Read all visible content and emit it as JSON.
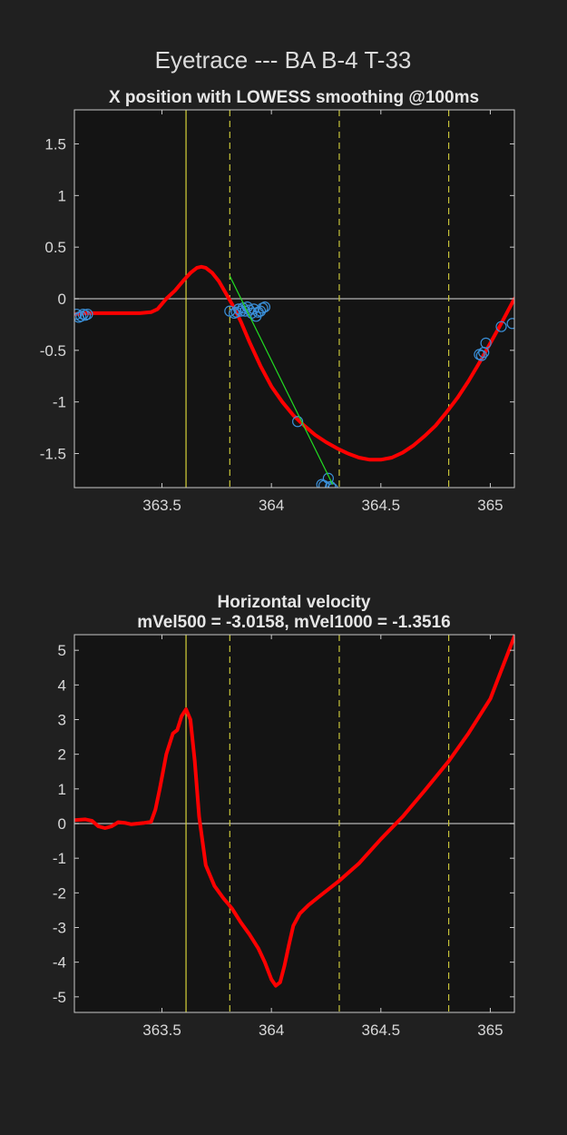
{
  "figure": {
    "title": "Eyetrace --- BA B-4 T-33",
    "background": "#202020",
    "axes_background": "#141414"
  },
  "colors": {
    "trace": "#ff0000",
    "samples": "#3a8fd8",
    "fit_line": "#22dd22",
    "zero_line": "#9a9a9a",
    "solid_marker": "#d6d23a",
    "dashed_marker": "#c8c43a"
  },
  "chart_data": [
    {
      "type": "line",
      "title": "X position with LOWESS smoothing @100ms",
      "xlabel": "",
      "ylabel": "",
      "xlim": [
        363.1,
        365.11
      ],
      "ylim": [
        -1.83,
        1.83
      ],
      "xticks": [
        363.5,
        364,
        364.5,
        365
      ],
      "xtick_labels": [
        "363.5",
        "364",
        "364.5",
        "365"
      ],
      "yticks": [
        1.5,
        1,
        0.5,
        0,
        -0.5,
        -1,
        -1.5
      ],
      "ytick_labels": [
        "1.5",
        "1",
        "0.5",
        "0",
        "-0.5",
        "-1",
        "-1.5"
      ],
      "grid": false,
      "zero_line": 0,
      "vlines_solid": [
        363.61
      ],
      "vlines_dashed": [
        363.81,
        364.31,
        364.81
      ],
      "series": [
        {
          "kind": "smoothed",
          "x": [
            363.1,
            363.15,
            363.2,
            363.25,
            363.3,
            363.35,
            363.4,
            363.45,
            363.48,
            363.52,
            363.56,
            363.6,
            363.63,
            363.66,
            363.68,
            363.7,
            363.73,
            363.76,
            363.79,
            363.82,
            363.86,
            363.9,
            363.95,
            364.0,
            364.05,
            364.1,
            364.15,
            364.2,
            364.25,
            364.3,
            364.35,
            364.4,
            364.45,
            364.5,
            364.55,
            364.6,
            364.65,
            364.7,
            364.75,
            364.8,
            364.85,
            364.9,
            364.95,
            365.0,
            365.05,
            365.11
          ],
          "y": [
            -0.15,
            -0.14,
            -0.14,
            -0.14,
            -0.14,
            -0.14,
            -0.14,
            -0.13,
            -0.1,
            0.0,
            0.08,
            0.18,
            0.25,
            0.3,
            0.31,
            0.3,
            0.25,
            0.17,
            0.06,
            -0.05,
            -0.22,
            -0.42,
            -0.65,
            -0.85,
            -1.0,
            -1.13,
            -1.23,
            -1.32,
            -1.39,
            -1.45,
            -1.5,
            -1.54,
            -1.56,
            -1.56,
            -1.54,
            -1.49,
            -1.42,
            -1.33,
            -1.23,
            -1.1,
            -0.96,
            -0.8,
            -0.62,
            -0.43,
            -0.24,
            0.0
          ]
        },
        {
          "kind": "samples",
          "x": [
            363.11,
            363.12,
            363.13,
            363.14,
            363.15,
            363.16,
            363.81,
            363.83,
            363.84,
            363.85,
            363.86,
            363.87,
            363.88,
            363.89,
            363.9,
            363.91,
            363.92,
            363.93,
            363.94,
            363.95,
            363.96,
            363.97,
            364.12,
            364.23,
            364.24,
            364.26,
            364.27,
            364.28,
            364.95,
            364.96,
            364.97,
            364.98,
            365.05,
            365.1
          ],
          "y": [
            -0.15,
            -0.18,
            -0.17,
            -0.15,
            -0.16,
            -0.15,
            -0.12,
            -0.14,
            -0.13,
            -0.1,
            -0.12,
            -0.09,
            -0.12,
            -0.08,
            -0.11,
            -0.14,
            -0.1,
            -0.17,
            -0.13,
            -0.12,
            -0.09,
            -0.08,
            -1.19,
            -1.8,
            -1.81,
            -1.74,
            -1.82,
            -1.84,
            -0.54,
            -0.55,
            -0.52,
            -0.43,
            -0.27,
            -0.24
          ]
        },
        {
          "kind": "fit",
          "x": [
            363.81,
            364.28
          ],
          "y": [
            0.22,
            -1.8
          ]
        }
      ]
    },
    {
      "type": "line",
      "title": "Horizontal velocity",
      "subtitle": "mVel500 = -3.0158, mVel1000 = -1.3516",
      "xlabel": "",
      "ylabel": "",
      "xlim": [
        363.1,
        365.11
      ],
      "ylim": [
        -5.45,
        5.45
      ],
      "xticks": [
        363.5,
        364,
        364.5,
        365
      ],
      "xtick_labels": [
        "363.5",
        "364",
        "364.5",
        "365"
      ],
      "yticks": [
        5,
        4,
        3,
        2,
        1,
        0,
        -1,
        -2,
        -3,
        -4,
        -5
      ],
      "ytick_labels": [
        "5",
        "4",
        "3",
        "2",
        "1",
        "0",
        "-1",
        "-2",
        "-3",
        "-4",
        "-5"
      ],
      "grid": false,
      "zero_line": 0,
      "vlines_solid": [
        363.61
      ],
      "vlines_dashed": [
        363.81,
        364.31,
        364.81
      ],
      "series": [
        {
          "kind": "smoothed",
          "x": [
            363.1,
            363.15,
            363.18,
            363.21,
            363.24,
            363.27,
            363.3,
            363.33,
            363.36,
            363.39,
            363.42,
            363.45,
            363.47,
            363.49,
            363.52,
            363.55,
            363.57,
            363.59,
            363.61,
            363.63,
            363.65,
            363.67,
            363.7,
            363.74,
            363.78,
            363.82,
            363.86,
            363.9,
            363.94,
            363.97,
            364.0,
            364.02,
            364.04,
            364.06,
            364.08,
            364.1,
            364.13,
            364.17,
            364.22,
            364.27,
            364.31,
            364.4,
            364.5,
            364.6,
            364.7,
            364.81,
            364.9,
            365.0,
            365.11
          ],
          "y": [
            0.1,
            0.12,
            0.08,
            -0.08,
            -0.13,
            -0.08,
            0.04,
            0.02,
            -0.02,
            0.0,
            0.02,
            0.05,
            0.4,
            1.0,
            2.0,
            2.6,
            2.7,
            3.1,
            3.3,
            3.0,
            1.8,
            0.2,
            -1.2,
            -1.8,
            -2.15,
            -2.45,
            -2.85,
            -3.2,
            -3.6,
            -4.0,
            -4.5,
            -4.68,
            -4.58,
            -4.1,
            -3.5,
            -2.95,
            -2.6,
            -2.35,
            -2.1,
            -1.85,
            -1.65,
            -1.15,
            -0.45,
            0.2,
            0.95,
            1.8,
            2.6,
            3.6,
            5.4
          ]
        }
      ]
    }
  ]
}
